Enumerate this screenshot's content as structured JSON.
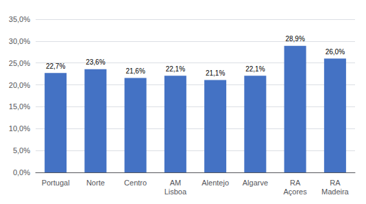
{
  "chart_data": {
    "type": "bar",
    "categories": [
      "Portugal",
      "Norte",
      "Centro",
      "AM\nLisboa",
      "Alentejo",
      "Algarve",
      "RA\nAçores",
      "RA\nMadeira"
    ],
    "values": [
      22.7,
      23.6,
      21.6,
      22.1,
      21.1,
      22.1,
      28.9,
      26.0
    ],
    "value_labels": [
      "22,7%",
      "23,6%",
      "21,6%",
      "22,1%",
      "21,1%",
      "22,1%",
      "28,9%",
      "26,0%"
    ],
    "data_labels": true,
    "color": "#4472C4",
    "ylim": [
      0,
      35
    ],
    "yticks": [
      {
        "value": 0,
        "label": "0,0%"
      },
      {
        "value": 5,
        "label": "5,0%"
      },
      {
        "value": 10,
        "label": "10,0%"
      },
      {
        "value": 15,
        "label": "15,0%"
      },
      {
        "value": 20,
        "label": "20,0%"
      },
      {
        "value": 25,
        "label": "25,0%"
      },
      {
        "value": 30,
        "label": "30,0%"
      },
      {
        "value": 35,
        "label": "35,0%"
      }
    ],
    "grid": true
  }
}
